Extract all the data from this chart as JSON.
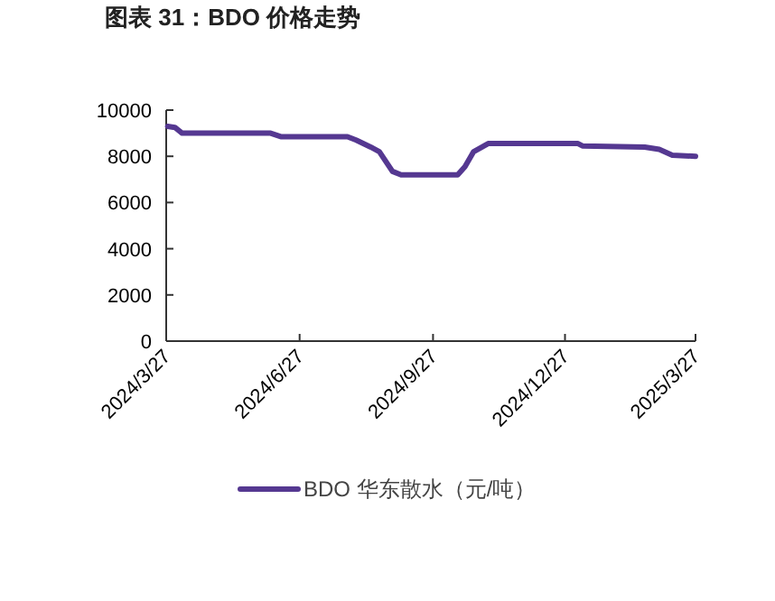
{
  "chart_data": {
    "type": "line",
    "title": "图表 31：BDO 价格走势",
    "x": [
      "2024-03-28",
      "2024-04-02",
      "2024-04-07",
      "2024-06-07",
      "2024-06-14",
      "2024-07-30",
      "2024-08-05",
      "2024-08-15",
      "2024-08-21",
      "2024-08-30",
      "2024-09-05",
      "2024-10-14",
      "2024-10-19",
      "2024-10-25",
      "2024-11-04",
      "2025-01-05",
      "2025-01-08",
      "2025-02-20",
      "2025-03-02",
      "2025-03-11",
      "2025-03-27"
    ],
    "series": [
      {
        "name": "BDO 华东散水（元/吨）",
        "color": "#553891",
        "values": [
          9300,
          9250,
          9000,
          9000,
          8850,
          8850,
          8700,
          8400,
          8200,
          7350,
          7200,
          7200,
          7550,
          8200,
          8550,
          8550,
          8450,
          8400,
          8300,
          8050,
          8000
        ]
      }
    ],
    "xlim": [
      "2024-03-27",
      "2025-03-27"
    ],
    "xticks": [
      {
        "value": "2024-03-27",
        "label": "2024/3/27"
      },
      {
        "value": "2024-06-27",
        "label": "2024/6/27"
      },
      {
        "value": "2024-09-27",
        "label": "2024/9/27"
      },
      {
        "value": "2024-12-27",
        "label": "2024/12/27"
      },
      {
        "value": "2025-03-27",
        "label": "2025/3/27"
      }
    ],
    "ylim": [
      0,
      10000
    ],
    "yticks": [
      0,
      2000,
      4000,
      6000,
      8000,
      10000
    ],
    "legend": "bottom"
  }
}
